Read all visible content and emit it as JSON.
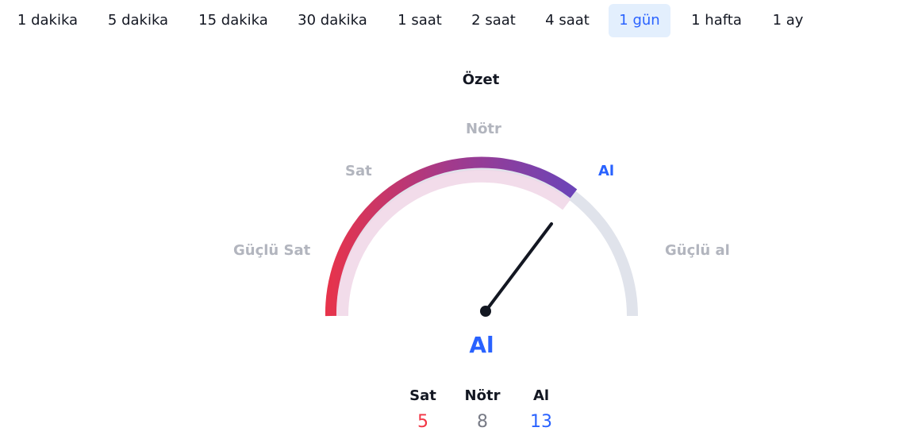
{
  "tabs": [
    {
      "label": "1 dakika",
      "active": false
    },
    {
      "label": "5 dakika",
      "active": false
    },
    {
      "label": "15 dakika",
      "active": false
    },
    {
      "label": "30 dakika",
      "active": false
    },
    {
      "label": "1 saat",
      "active": false
    },
    {
      "label": "2 saat",
      "active": false
    },
    {
      "label": "4 saat",
      "active": false
    },
    {
      "label": "1 gün",
      "active": true
    },
    {
      "label": "1 hafta",
      "active": false
    },
    {
      "label": "1 ay",
      "active": false
    }
  ],
  "gauge": {
    "title": "Özet",
    "labels": {
      "strong_sell": "Güçlü Sat",
      "sell": "Sat",
      "neutral": "Nötr",
      "buy": "Al",
      "strong_buy": "Güçlü al"
    },
    "active_label": "buy",
    "result": "Al",
    "colors": {
      "sell": "#f23645",
      "buy": "#2962ff",
      "neutral": "#787b86",
      "track": "#e0e3eb",
      "needle": "#131722",
      "gradient_start": "#e8334a",
      "gradient_mid": "#a23a8c",
      "gradient_end": "#6b44b8"
    }
  },
  "counters": {
    "sell": {
      "label": "Sat",
      "value": "5"
    },
    "neutral": {
      "label": "Nötr",
      "value": "8"
    },
    "buy": {
      "label": "Al",
      "value": "13"
    }
  }
}
